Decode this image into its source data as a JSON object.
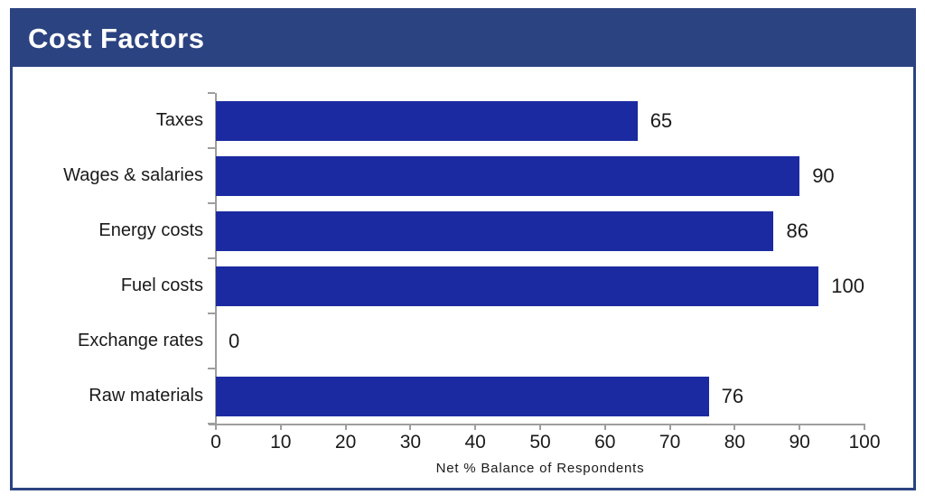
{
  "header": {
    "title": "Cost Factors"
  },
  "chart_data": {
    "type": "bar",
    "orientation": "horizontal",
    "title": "Cost Factors",
    "categories": [
      "Taxes",
      "Wages & salaries",
      "Energy costs",
      "Fuel costs",
      "Exchange rates",
      "Raw materials"
    ],
    "values": [
      65,
      90,
      86,
      100,
      0,
      76
    ],
    "data_labels": [
      "65",
      "90",
      "86",
      "100",
      "0",
      "76"
    ],
    "xlabel": "Net % Balance of Respondents",
    "ylabel": "",
    "xlim": [
      0,
      100
    ],
    "xticks": [
      0,
      10,
      20,
      30,
      40,
      50,
      60,
      70,
      80,
      90,
      100
    ],
    "grid": false,
    "legend": "none"
  },
  "colors": {
    "header_bg": "#2B4380",
    "frame_border": "#2B4380",
    "bar": "#1B2AA0",
    "axis": "#9E9E9E",
    "text": "#1A1A1A"
  }
}
